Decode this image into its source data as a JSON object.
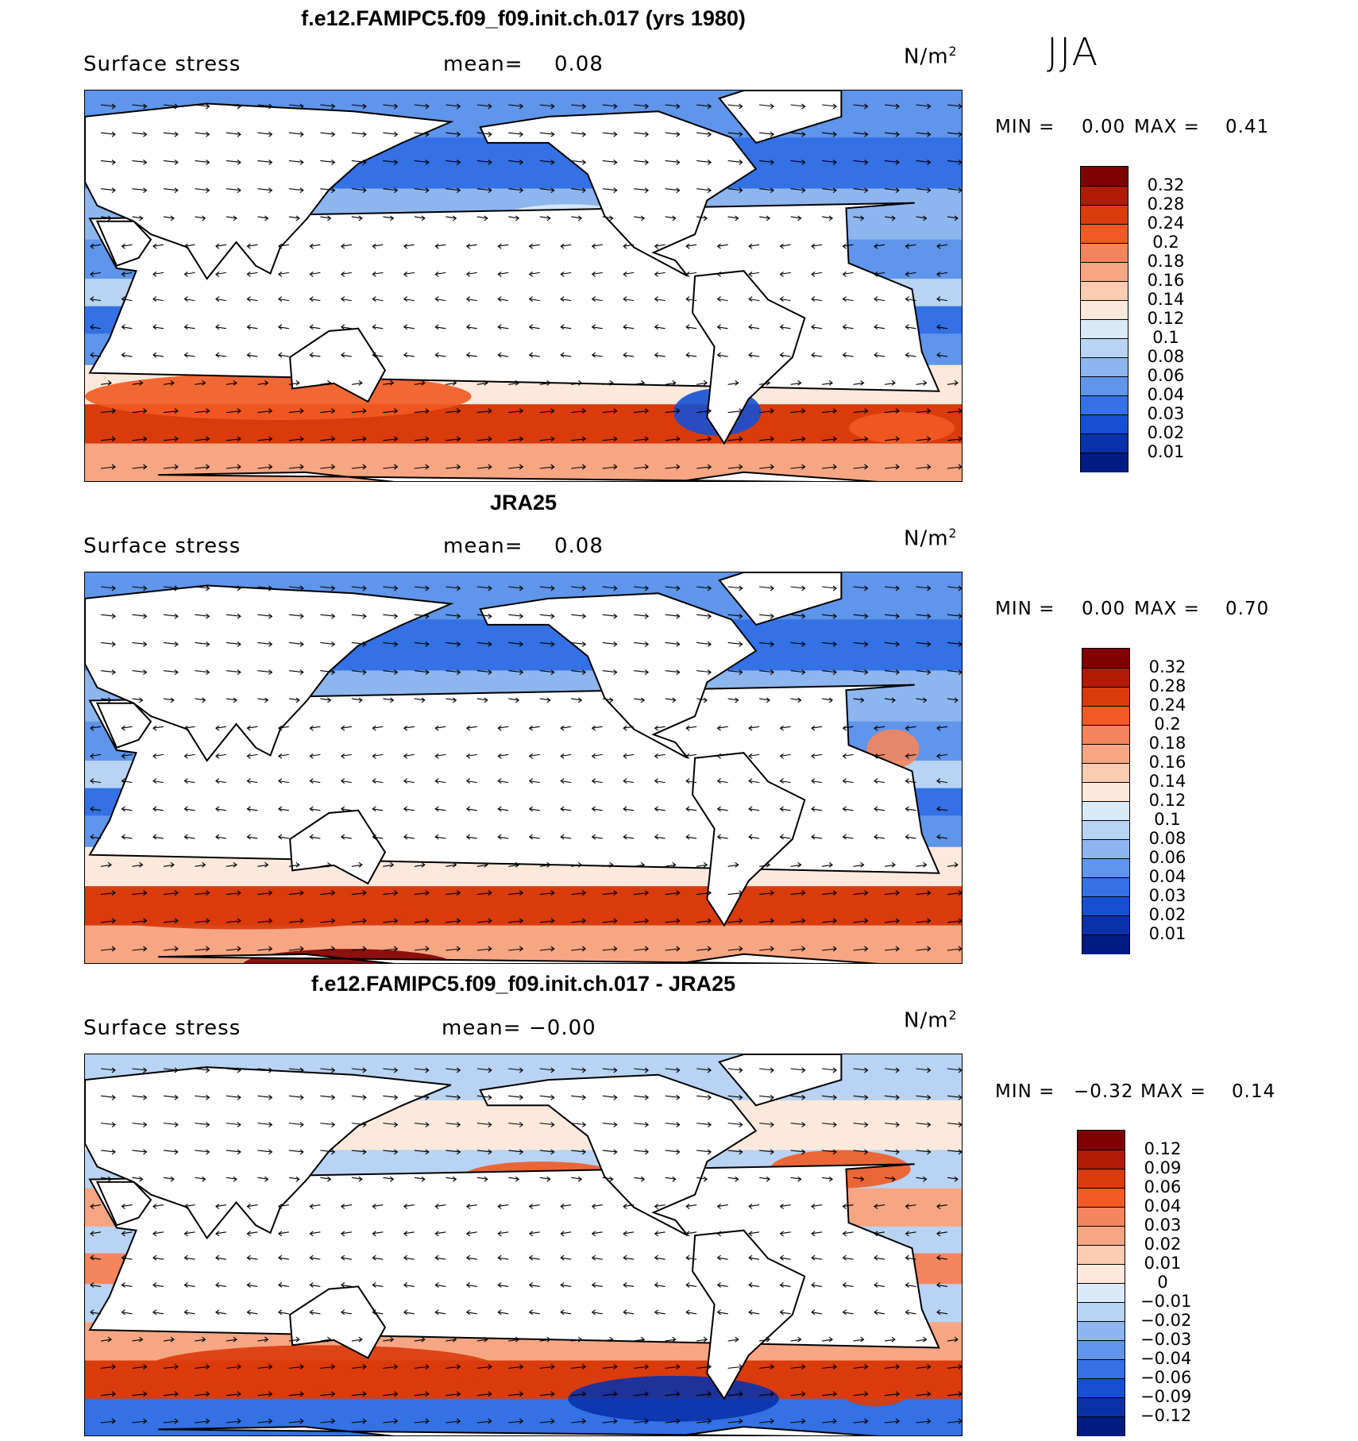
{
  "season": "JJA",
  "panels": [
    {
      "title": "f.e12.FAMIPC5.f09_f09.init.ch.017 (yrs 1980)",
      "field": "Surface stress",
      "mean_label": "mean=",
      "mean_value": "0.08",
      "units": "N/m",
      "units_sup": "2",
      "min_label": "MIN =",
      "min_value": "0.00",
      "max_label": "MAX =",
      "max_value": "0.41",
      "colorbar_labels": [
        "0.32",
        "0.28",
        "0.24",
        "0.2",
        "0.18",
        "0.16",
        "0.14",
        "0.12",
        "0.1",
        "0.08",
        "0.06",
        "0.04",
        "0.03",
        "0.02",
        "0.01"
      ],
      "colorbar_colors": [
        "#7f0000",
        "#b01a07",
        "#d93b0c",
        "#f15a22",
        "#f4855c",
        "#f7a683",
        "#fbcbb2",
        "#fde9dc",
        "#dbeaf8",
        "#b8d3f3",
        "#8db5ee",
        "#5f95ea",
        "#3371e4",
        "#1550d2",
        "#0a32a8",
        "#001b82"
      ],
      "chart_data": {
        "type": "heatmap",
        "title": "f.e12.FAMIPC5.f09_f09.init.ch.017 (yrs 1980)",
        "variable": "Surface stress",
        "units": "N/m2",
        "mean": 0.08,
        "min": 0.0,
        "max": 0.41,
        "levels": [
          0.01,
          0.02,
          0.03,
          0.04,
          0.06,
          0.08,
          0.1,
          0.12,
          0.14,
          0.16,
          0.18,
          0.2,
          0.24,
          0.28,
          0.32
        ]
      }
    },
    {
      "title": "JRA25",
      "field": "Surface stress",
      "mean_label": "mean=",
      "mean_value": "0.08",
      "units": "N/m",
      "units_sup": "2",
      "min_label": "MIN =",
      "min_value": "0.00",
      "max_label": "MAX =",
      "max_value": "0.70",
      "colorbar_labels": [
        "0.32",
        "0.28",
        "0.24",
        "0.2",
        "0.18",
        "0.16",
        "0.14",
        "0.12",
        "0.1",
        "0.08",
        "0.06",
        "0.04",
        "0.03",
        "0.02",
        "0.01"
      ],
      "colorbar_colors": [
        "#7f0000",
        "#b01a07",
        "#d93b0c",
        "#f15a22",
        "#f4855c",
        "#f7a683",
        "#fbcbb2",
        "#fde9dc",
        "#dbeaf8",
        "#b8d3f3",
        "#8db5ee",
        "#5f95ea",
        "#3371e4",
        "#1550d2",
        "#0a32a8",
        "#001b82"
      ],
      "chart_data": {
        "type": "heatmap",
        "title": "JRA25",
        "variable": "Surface stress",
        "units": "N/m2",
        "mean": 0.08,
        "min": 0.0,
        "max": 0.7,
        "levels": [
          0.01,
          0.02,
          0.03,
          0.04,
          0.06,
          0.08,
          0.1,
          0.12,
          0.14,
          0.16,
          0.18,
          0.2,
          0.24,
          0.28,
          0.32
        ]
      }
    },
    {
      "title": "f.e12.FAMIPC5.f09_f09.init.ch.017 - JRA25",
      "field": "Surface stress",
      "mean_label": "mean=",
      "mean_value": "−0.00",
      "units": "N/m",
      "units_sup": "2",
      "min_label": "MIN =",
      "min_value": "−0.32",
      "max_label": "MAX =",
      "max_value": "0.14",
      "colorbar_labels": [
        "0.12",
        "0.09",
        "0.06",
        "0.04",
        "0.03",
        "0.02",
        "0.01",
        "0",
        "−0.01",
        "−0.02",
        "−0.03",
        "−0.04",
        "−0.06",
        "−0.09",
        "−0.12"
      ],
      "colorbar_colors": [
        "#7f0000",
        "#b01a07",
        "#d93b0c",
        "#f15a22",
        "#f4855c",
        "#f7a683",
        "#fbcbb2",
        "#fde9dc",
        "#dbeaf8",
        "#b8d3f3",
        "#8db5ee",
        "#5f95ea",
        "#3371e4",
        "#1550d2",
        "#0a32a8",
        "#001b82"
      ],
      "chart_data": {
        "type": "heatmap",
        "title": "f.e12.FAMIPC5.f09_f09.init.ch.017 - JRA25",
        "variable": "Surface stress",
        "units": "N/m2",
        "mean": -0.0,
        "min": -0.32,
        "max": 0.14,
        "levels": [
          -0.12,
          -0.09,
          -0.06,
          -0.04,
          -0.03,
          -0.02,
          -0.01,
          0,
          0.01,
          0.02,
          0.03,
          0.04,
          0.06,
          0.09,
          0.12
        ]
      }
    }
  ]
}
